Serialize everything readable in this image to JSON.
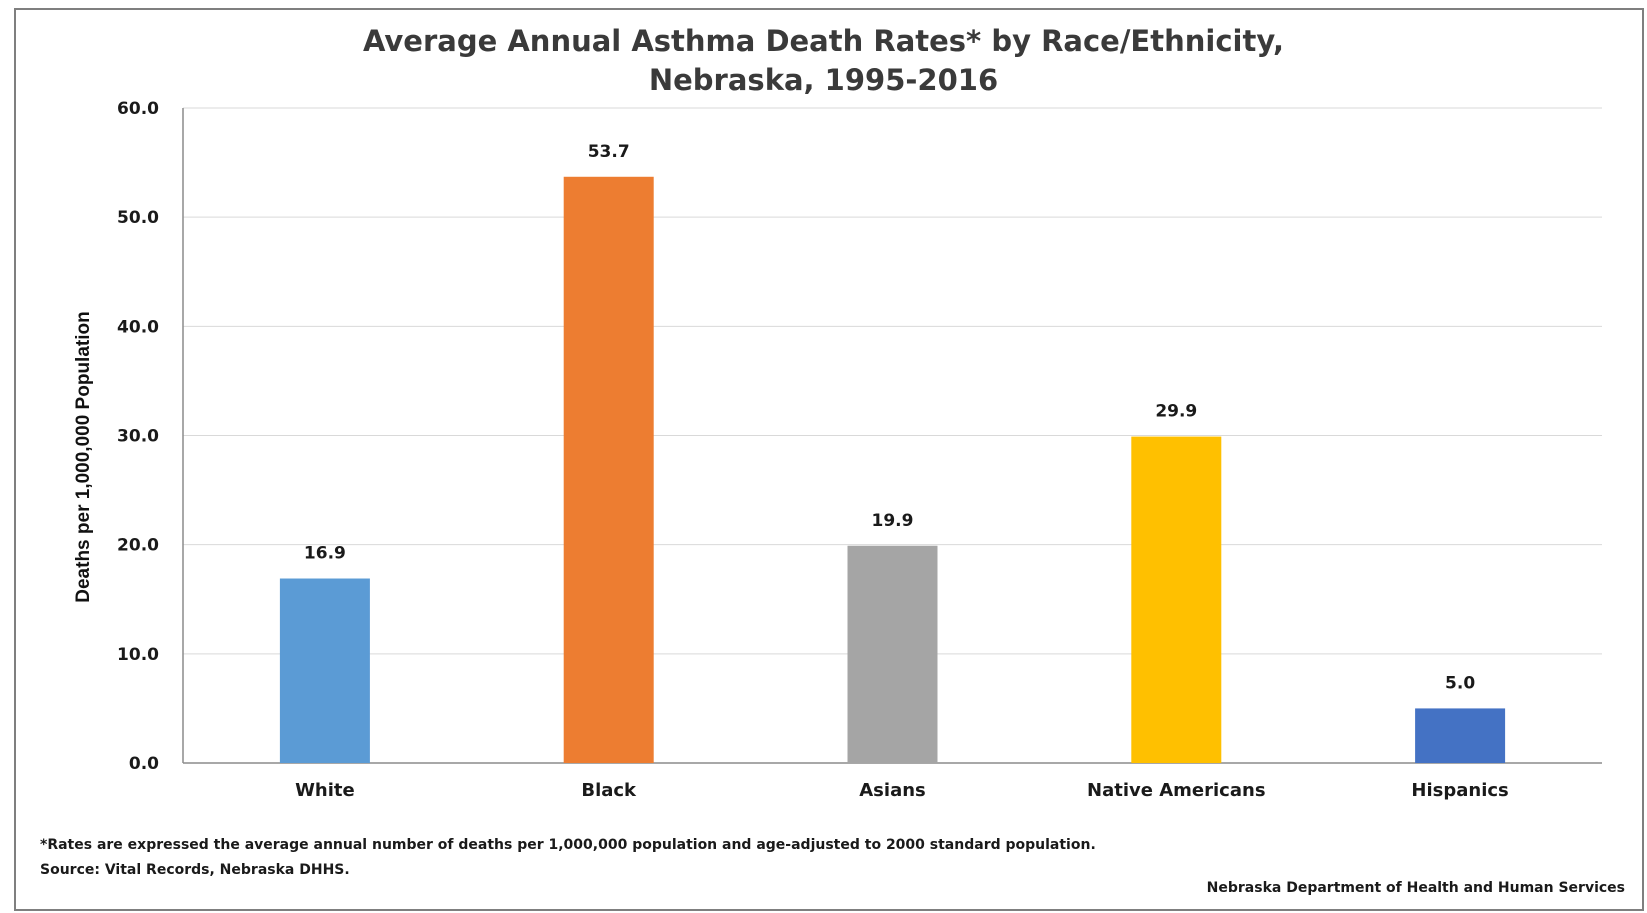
{
  "chart_data": {
    "type": "bar",
    "title_line1": "Average Annual Asthma Death Rates* by Race/Ethnicity,",
    "title_line2": "Nebraska, 1995-2016",
    "xlabel": "",
    "ylabel": "Deaths per 1,000,000 Population",
    "categories": [
      "White",
      "Black",
      "Asians",
      "Native Americans",
      "Hispanics"
    ],
    "values": [
      16.9,
      53.7,
      19.9,
      29.9,
      5.0
    ],
    "data_labels": [
      "16.9",
      "53.7",
      "19.9",
      "29.9",
      "5.0"
    ],
    "colors": [
      "#5b9bd5",
      "#ed7d31",
      "#a5a5a5",
      "#ffc000",
      "#4472c4"
    ],
    "ylim": [
      0,
      60
    ],
    "yticks": [
      "0.0",
      "10.0",
      "20.0",
      "30.0",
      "40.0",
      "50.0",
      "60.0"
    ],
    "grid": true,
    "legend": "none",
    "footnote": "*Rates are expressed the average annual number of deaths per 1,000,000 population and age-adjusted to 2000 standard population.",
    "source": "Source: Vital Records, Nebraska DHHS.",
    "credit": "Nebraska Department of Health and Human Services"
  }
}
